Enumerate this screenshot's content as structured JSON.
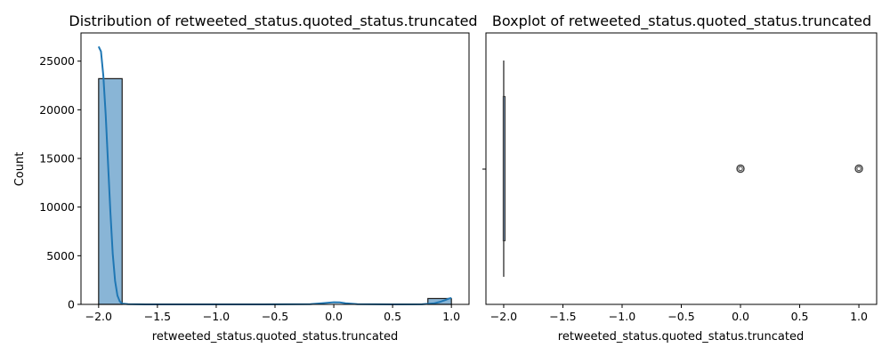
{
  "chart_data": [
    {
      "type": "histogram",
      "title": "Distribution of retweeted_status.quoted_status.truncated",
      "xlabel": "retweeted_status.quoted_status.truncated",
      "ylabel": "Count",
      "xlim": [
        -2.15,
        1.15
      ],
      "ylim": [
        0,
        27900
      ],
      "xticks": [
        -2.0,
        -1.5,
        -1.0,
        -0.5,
        0.0,
        0.5,
        1.0
      ],
      "xtick_labels": [
        "−2.0",
        "−1.5",
        "−1.0",
        "−0.5",
        "0.0",
        "0.5",
        "1.0"
      ],
      "yticks": [
        0,
        5000,
        10000,
        15000,
        20000,
        25000
      ],
      "ytick_labels": [
        "0",
        "5000",
        "10000",
        "15000",
        "20000",
        "25000"
      ],
      "bins": [
        {
          "x0": -2.0,
          "x1": -1.8,
          "count": 23200
        },
        {
          "x0": -0.1,
          "x1": 0.1,
          "count": 0
        },
        {
          "x0": 0.8,
          "x1": 1.0,
          "count": 600
        }
      ],
      "kde": {
        "x": [
          -2.0,
          -1.98,
          -1.96,
          -1.94,
          -1.92,
          -1.9,
          -1.88,
          -1.86,
          -1.84,
          -1.82,
          -1.8,
          -1.75,
          -1.6,
          -1.2,
          -0.6,
          -0.2,
          -0.1,
          0.0,
          0.05,
          0.1,
          0.2,
          0.5,
          0.75,
          0.85,
          0.9,
          0.95,
          0.98,
          1.0
        ],
        "y": [
          26500,
          26000,
          23500,
          19500,
          14500,
          9500,
          5200,
          2400,
          900,
          300,
          80,
          20,
          5,
          0,
          0,
          20,
          120,
          220,
          200,
          120,
          20,
          0,
          10,
          100,
          250,
          450,
          600,
          650
        ]
      },
      "colors": {
        "bar_fill": "#89b5d6",
        "bar_edge": "#1a1a1a",
        "kde_line": "#1f77b4"
      },
      "grid": false
    },
    {
      "type": "boxplot",
      "title": "Boxplot of retweeted_status.quoted_status.truncated",
      "xlabel": "retweeted_status.quoted_status.truncated",
      "xlim": [
        -2.15,
        1.15
      ],
      "xticks": [
        -2.0,
        -1.5,
        -1.0,
        -0.5,
        0.0,
        0.5,
        1.0
      ],
      "xtick_labels": [
        "−2.0",
        "−1.5",
        "−1.0",
        "−0.5",
        "0.0",
        "0.5",
        "1.0"
      ],
      "box": {
        "q1": -2.0,
        "median": -2.0,
        "q3": -2.0,
        "whisker_low": -2.0,
        "whisker_high": -2.0
      },
      "outliers": [
        0.0,
        1.0
      ],
      "colors": {
        "box_line": "#3d3d3d",
        "outlier_edge": "#3d3d3d"
      },
      "grid": false
    }
  ]
}
